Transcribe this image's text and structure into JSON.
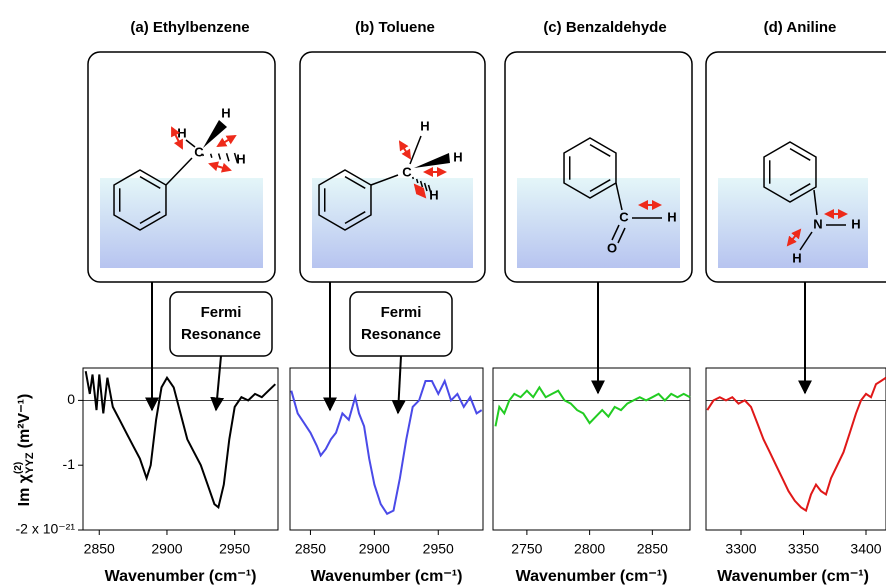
{
  "chart_data": [
    {
      "type": "line",
      "title": "(a) Ethylbenzene",
      "x_label": "Wavenumber (cm⁻¹)",
      "y_label": "Im χ",
      "y_label_sup": "(2)",
      "y_label_sub": "YYZ",
      "y_label_units": "(m²V⁻¹)",
      "annotation": [
        "Fermi",
        "Resonance"
      ],
      "atoms": [
        "H",
        "H",
        "C",
        "H"
      ],
      "color": "#000000",
      "x": [
        2840,
        2843,
        2845,
        2848,
        2850,
        2853,
        2856,
        2860,
        2865,
        2870,
        2875,
        2880,
        2885,
        2888,
        2892,
        2896,
        2900,
        2905,
        2910,
        2915,
        2920,
        2925,
        2930,
        2935,
        2938,
        2942,
        2946,
        2950,
        2955,
        2960,
        2965,
        2970,
        2975,
        2980
      ],
      "values": [
        0.45,
        0.1,
        0.4,
        -0.15,
        0.4,
        -0.2,
        0.35,
        -0.1,
        -0.3,
        -0.5,
        -0.7,
        -0.9,
        -1.2,
        -1.0,
        -0.3,
        0.2,
        0.35,
        0.2,
        -0.2,
        -0.6,
        -0.8,
        -1.0,
        -1.3,
        -1.6,
        -1.65,
        -1.3,
        -0.6,
        -0.1,
        0.05,
        0.0,
        0.1,
        0.05,
        0.15,
        0.25
      ],
      "xlim": [
        2838,
        2982
      ],
      "ylim": [
        -2,
        0.5
      ],
      "xticks": [
        2850,
        2900,
        2950
      ],
      "yticks": [
        0,
        -1,
        {
          "value": -2,
          "label": "-2 x 10⁻²¹"
        }
      ]
    },
    {
      "type": "line",
      "title": "(b) Toluene",
      "x_label": "Wavenumber (cm⁻¹)",
      "annotation": [
        "Fermi",
        "Resonance"
      ],
      "atoms": [
        "H",
        "C",
        "H",
        "H"
      ],
      "color": "#4a4ae8",
      "x": [
        2835,
        2840,
        2845,
        2850,
        2855,
        2858,
        2862,
        2866,
        2870,
        2875,
        2880,
        2885,
        2888,
        2892,
        2896,
        2900,
        2905,
        2910,
        2915,
        2920,
        2925,
        2930,
        2935,
        2940,
        2945,
        2950,
        2955,
        2960,
        2965,
        2970,
        2975,
        2980,
        2984
      ],
      "values": [
        0.15,
        -0.2,
        -0.35,
        -0.5,
        -0.7,
        -0.85,
        -0.75,
        -0.6,
        -0.5,
        -0.2,
        -0.3,
        0.05,
        -0.2,
        -0.4,
        -0.9,
        -1.3,
        -1.6,
        -1.75,
        -1.7,
        -1.2,
        -0.6,
        -0.1,
        0.0,
        0.3,
        0.3,
        0.1,
        0.3,
        0.0,
        0.1,
        -0.1,
        0.05,
        -0.2,
        -0.15
      ],
      "xlim": [
        2834,
        2985
      ],
      "ylim": [
        -2,
        0.5
      ],
      "xticks": [
        2850,
        2900,
        2950
      ]
    },
    {
      "type": "line",
      "title": "(c) Benzaldehyde",
      "x_label": "Wavenumber (cm⁻¹)",
      "atoms": [
        "C",
        "H",
        "O"
      ],
      "color": "#22cc22",
      "x": [
        2725,
        2728,
        2732,
        2736,
        2740,
        2745,
        2750,
        2755,
        2760,
        2765,
        2770,
        2775,
        2780,
        2785,
        2790,
        2795,
        2800,
        2805,
        2810,
        2815,
        2820,
        2825,
        2830,
        2835,
        2840,
        2845,
        2850,
        2855,
        2860,
        2865,
        2870,
        2875,
        2880
      ],
      "values": [
        -0.4,
        -0.1,
        -0.2,
        0.0,
        0.1,
        0.05,
        0.15,
        0.05,
        0.2,
        0.05,
        0.1,
        0.15,
        0.0,
        -0.05,
        -0.15,
        -0.2,
        -0.35,
        -0.25,
        -0.15,
        -0.25,
        -0.1,
        -0.15,
        -0.05,
        0.0,
        0.05,
        0.0,
        0.05,
        0.1,
        0.0,
        0.1,
        0.05,
        0.1,
        0.05
      ],
      "xlim": [
        2723,
        2880
      ],
      "ylim": [
        -2,
        0.5
      ],
      "xticks": [
        2750,
        2800,
        2850
      ]
    },
    {
      "type": "line",
      "title": "(d) Aniline",
      "x_label": "Wavenumber (cm⁻¹)",
      "atoms": [
        "N",
        "H",
        "H"
      ],
      "color": "#e01818",
      "x": [
        3273,
        3278,
        3283,
        3288,
        3293,
        3298,
        3303,
        3308,
        3313,
        3318,
        3323,
        3328,
        3333,
        3338,
        3343,
        3348,
        3352,
        3356,
        3360,
        3364,
        3368,
        3372,
        3377,
        3382,
        3387,
        3392,
        3396,
        3400,
        3404,
        3408,
        3412,
        3416
      ],
      "values": [
        -0.15,
        0.0,
        0.05,
        0.0,
        0.05,
        -0.05,
        0.0,
        -0.1,
        -0.35,
        -0.6,
        -0.8,
        -1.0,
        -1.2,
        -1.4,
        -1.55,
        -1.65,
        -1.7,
        -1.45,
        -1.3,
        -1.4,
        -1.45,
        -1.2,
        -1.0,
        -0.8,
        -0.5,
        -0.2,
        0.0,
        0.1,
        0.05,
        0.25,
        0.3,
        0.35
      ],
      "xlim": [
        3272,
        3416
      ],
      "ylim": [
        -2,
        0.5
      ],
      "xticks": [
        3300,
        3350,
        3400
      ]
    }
  ]
}
